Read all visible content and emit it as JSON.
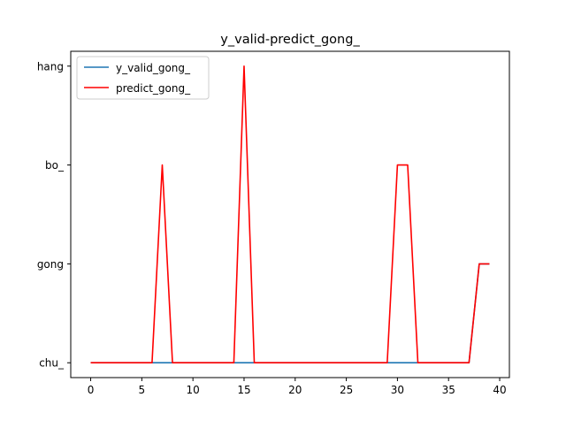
{
  "chart_data": {
    "type": "line",
    "title": "y_valid-predict_gong_",
    "xlabel": "",
    "ylabel": "",
    "xlim": [
      -1.95,
      40.95
    ],
    "ylim": [
      -0.15,
      3.15
    ],
    "x_ticks": [
      0,
      5,
      10,
      15,
      20,
      25,
      30,
      35,
      40
    ],
    "y_categories": [
      "chu_",
      "gong",
      "bo_",
      "hang"
    ],
    "grid": false,
    "legend_position": "top-left",
    "series": [
      {
        "name": "y_valid_gong_",
        "color": "#1f77b4",
        "x": [
          0,
          1,
          2,
          3,
          4,
          5,
          6,
          7,
          8,
          9,
          10,
          11,
          12,
          13,
          14,
          15,
          16,
          17,
          18,
          19,
          20,
          21,
          22,
          23,
          24,
          25,
          26,
          27,
          28,
          29,
          30,
          31,
          32,
          33,
          34,
          35,
          36,
          37,
          38,
          39
        ],
        "y": [
          0,
          0,
          0,
          0,
          0,
          0,
          0,
          0,
          0,
          0,
          0,
          0,
          0,
          0,
          0,
          0,
          0,
          0,
          0,
          0,
          0,
          0,
          0,
          0,
          0,
          0,
          0,
          0,
          0,
          0,
          0,
          0,
          0,
          0,
          0,
          0,
          0,
          0,
          1,
          1
        ]
      },
      {
        "name": "predict_gong_",
        "color": "#ff0000",
        "x": [
          0,
          1,
          2,
          3,
          4,
          5,
          6,
          7,
          8,
          9,
          10,
          11,
          12,
          13,
          14,
          15,
          16,
          17,
          18,
          19,
          20,
          21,
          22,
          23,
          24,
          25,
          26,
          27,
          28,
          29,
          30,
          31,
          32,
          33,
          34,
          35,
          36,
          37,
          38,
          39
        ],
        "y": [
          0,
          0,
          0,
          0,
          0,
          0,
          0,
          2,
          0,
          0,
          0,
          0,
          0,
          0,
          0,
          3,
          0,
          0,
          0,
          0,
          0,
          0,
          0,
          0,
          0,
          0,
          0,
          0,
          0,
          0,
          2,
          2,
          0,
          0,
          0,
          0,
          0,
          0,
          1,
          1
        ]
      }
    ]
  }
}
